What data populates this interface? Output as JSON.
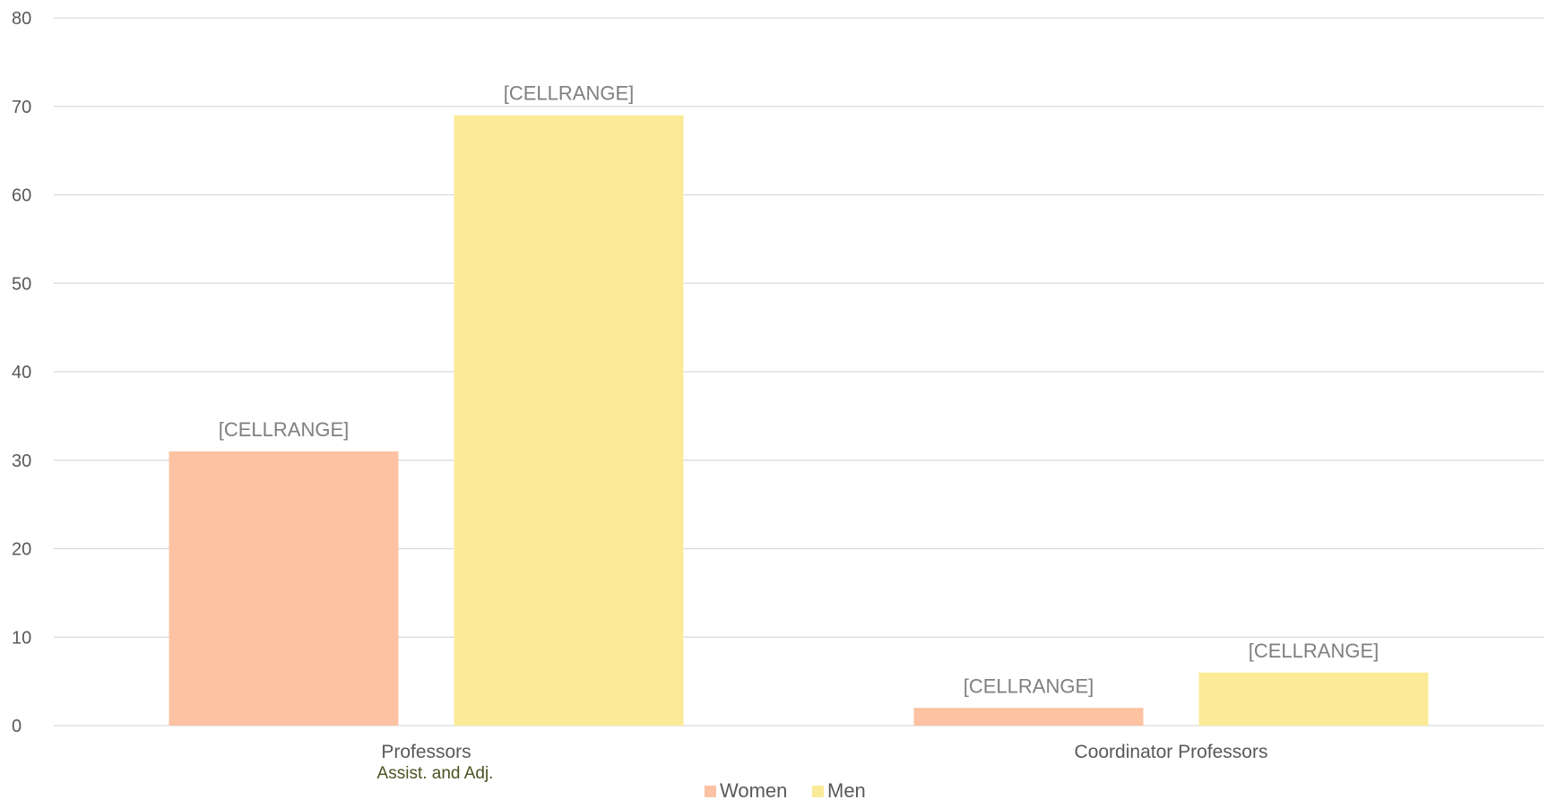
{
  "chart_data": {
    "type": "bar",
    "categories": [
      "Professors",
      "Coordinator Professors"
    ],
    "category_sublabels": [
      "Assist. and Adj.",
      ""
    ],
    "series": [
      {
        "name": "Women",
        "values": [
          31,
          2
        ],
        "color": "#fcc2a2",
        "labels": [
          "[CELLRANGE]",
          "[CELLRANGE]"
        ]
      },
      {
        "name": "Men",
        "values": [
          69,
          6
        ],
        "color": "#fbeb98",
        "labels": [
          "[CELLRANGE]",
          "[CELLRANGE]"
        ]
      }
    ],
    "ylim": [
      0,
      80
    ],
    "yticks": [
      0,
      10,
      20,
      30,
      40,
      50,
      60,
      70,
      80
    ],
    "grid": true,
    "legend": "bottom-center",
    "title": "",
    "xlabel": "",
    "ylabel": ""
  }
}
